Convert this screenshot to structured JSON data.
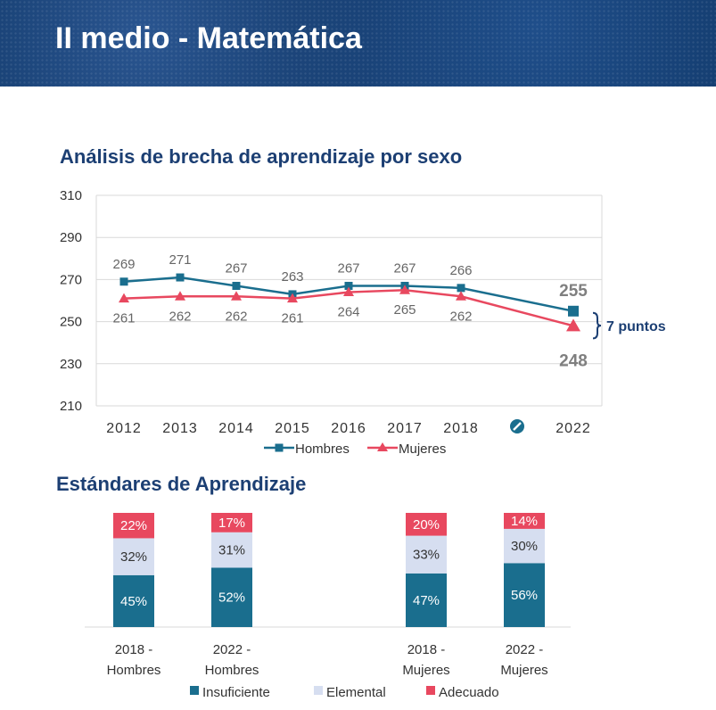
{
  "page": {
    "title": "II medio - Matemática"
  },
  "chart_data": [
    {
      "type": "line",
      "title": "Análisis de brecha de aprendizaje por sexo",
      "x": [
        "2012",
        "2013",
        "2014",
        "2015",
        "2016",
        "2017",
        "2018",
        "2022"
      ],
      "series": [
        {
          "name": "Hombres",
          "values": [
            269,
            271,
            267,
            263,
            267,
            267,
            266,
            255
          ],
          "color": "#1a6e8e",
          "marker": "square"
        },
        {
          "name": "Mujeres",
          "values": [
            261,
            262,
            262,
            261,
            264,
            265,
            262,
            248
          ],
          "color": "#e8485f",
          "marker": "triangle"
        }
      ],
      "ylim": [
        210,
        310
      ],
      "yticks": [
        "210",
        "230",
        "250",
        "270",
        "290",
        "310"
      ],
      "axis_break_between": [
        "2018",
        "2022"
      ],
      "annotation": "7 puntos",
      "grid": true,
      "legend": "bottom"
    },
    {
      "type": "bar",
      "stacked": true,
      "title": "Estándares de Aprendizaje",
      "categories": [
        "2018 - Hombres",
        "2022 - Hombres",
        "2018 - Mujeres",
        "2022 - Mujeres"
      ],
      "category_lines": [
        [
          "2018 -",
          "Hombres"
        ],
        [
          "2022 -",
          "Hombres"
        ],
        [
          "2018 -",
          "Mujeres"
        ],
        [
          "2022 -",
          "Mujeres"
        ]
      ],
      "series": [
        {
          "name": "Insuficiente",
          "values": [
            45,
            52,
            47,
            56
          ],
          "labels": [
            "45%",
            "52%",
            "47%",
            "56%"
          ],
          "color": "#1a6e8e"
        },
        {
          "name": "Elemental",
          "values": [
            32,
            31,
            33,
            30
          ],
          "labels": [
            "32%",
            "31%",
            "33%",
            "30%"
          ],
          "color": "#d6def0"
        },
        {
          "name": "Adecuado",
          "values": [
            22,
            17,
            20,
            14
          ],
          "labels": [
            "22%",
            "17%",
            "20%",
            "14%"
          ],
          "color": "#e8485f"
        }
      ],
      "legend": "bottom"
    }
  ]
}
